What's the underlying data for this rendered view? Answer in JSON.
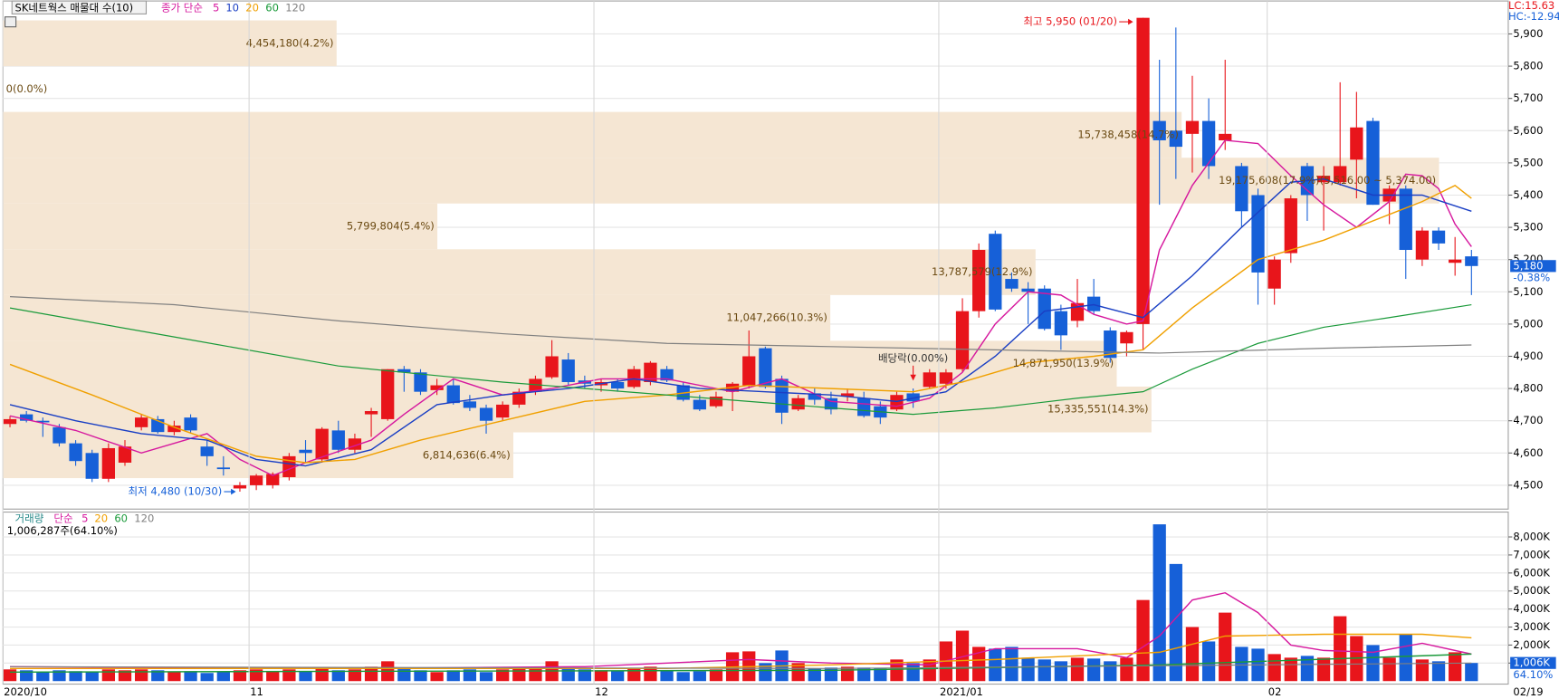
{
  "header": {
    "title": "SK네트웍스 매물대 수(10)",
    "lc": "LC:15.63",
    "hc": "HC:-12.94",
    "last_date": "02/19"
  },
  "chart_data": [
    {
      "type": "candlestick",
      "ma_title": "종가 단순",
      "categories": [
        "2020/10",
        null,
        null,
        null,
        null,
        null,
        null,
        null,
        null,
        null,
        null,
        null,
        null,
        null,
        null,
        "11",
        null,
        null,
        null,
        null,
        null,
        null,
        null,
        null,
        null,
        null,
        null,
        null,
        null,
        null,
        null,
        null,
        null,
        null,
        null,
        null,
        "12",
        null,
        null,
        null,
        null,
        null,
        null,
        null,
        null,
        null,
        null,
        null,
        null,
        null,
        null,
        null,
        null,
        null,
        null,
        null,
        null,
        "2021/01",
        null,
        null,
        null,
        null,
        null,
        null,
        null,
        null,
        null,
        null,
        null,
        null,
        null,
        null,
        null,
        null,
        null,
        null,
        null,
        "02",
        null,
        null,
        null,
        null,
        null,
        null,
        null,
        null,
        null,
        null,
        null,
        null
      ],
      "open": [
        4690,
        4720,
        4700,
        4680,
        4630,
        4600,
        4520,
        4570,
        4680,
        4705,
        4665,
        4710,
        4620,
        4555,
        4490,
        4500,
        4500,
        4525,
        4610,
        4580,
        4670,
        4610,
        4720,
        4705,
        4860,
        4850,
        4795,
        4810,
        4760,
        4740,
        4710,
        4750,
        4790,
        4835,
        4890,
        4825,
        4810,
        4820,
        4805,
        4820,
        4860,
        4810,
        4765,
        4745,
        4790,
        4810,
        4925,
        4830,
        4735,
        4785,
        4770,
        4775,
        4770,
        4745,
        4735,
        4785,
        4805,
        4815,
        4860,
        5040,
        5280,
        5140,
        5110,
        5110,
        5040,
        5010,
        5085,
        4980,
        4940,
        5000,
        5630,
        5600,
        5590,
        5630,
        5570,
        5490,
        5400,
        5110,
        5220,
        5490,
        5440,
        5440,
        5510,
        5630,
        5380,
        5420,
        5200,
        5290,
        5190,
        5210
      ],
      "high": [
        4715,
        4730,
        4710,
        4690,
        4640,
        4610,
        4630,
        4640,
        4720,
        4715,
        4700,
        4720,
        4640,
        4590,
        4510,
        4535,
        4540,
        4600,
        4640,
        4680,
        4700,
        4660,
        4740,
        4860,
        4870,
        4860,
        4830,
        4830,
        4780,
        4750,
        4760,
        4800,
        4840,
        4950,
        4910,
        4840,
        4830,
        4830,
        4870,
        4885,
        4870,
        4820,
        4780,
        4790,
        4820,
        4980,
        4930,
        4840,
        4780,
        4800,
        4790,
        4800,
        4790,
        4760,
        4790,
        4800,
        4860,
        4860,
        5080,
        5250,
        5290,
        5160,
        5130,
        5120,
        5060,
        5140,
        5140,
        4990,
        4980,
        5950,
        5820,
        5920,
        5770,
        5700,
        5820,
        5500,
        5420,
        5210,
        5400,
        5500,
        5490,
        5750,
        5720,
        5640,
        5430,
        5430,
        5300,
        5300,
        5270,
        5230
      ],
      "low": [
        4680,
        4695,
        4650,
        4620,
        4560,
        4510,
        4510,
        4560,
        4670,
        4660,
        4655,
        4660,
        4560,
        4530,
        4480,
        4485,
        4490,
        4515,
        4570,
        4570,
        4600,
        4600,
        4650,
        4700,
        4790,
        4780,
        4780,
        4750,
        4730,
        4660,
        4700,
        4740,
        4780,
        4830,
        4810,
        4800,
        4790,
        4790,
        4800,
        4810,
        4820,
        4760,
        4730,
        4740,
        4730,
        4800,
        4800,
        4690,
        4730,
        4750,
        4720,
        4760,
        4710,
        4690,
        4730,
        4740,
        4800,
        4800,
        4850,
        5020,
        5040,
        5100,
        5000,
        4980,
        4920,
        4990,
        5030,
        4880,
        4900,
        4920,
        5370,
        5450,
        5470,
        5450,
        5540,
        5300,
        5060,
        5060,
        5190,
        5320,
        5290,
        5430,
        5390,
        5370,
        5310,
        5140,
        5180,
        5230,
        5150,
        5090
      ],
      "close": [
        4705,
        4700,
        4695,
        4630,
        4575,
        4520,
        4615,
        4620,
        4710,
        4665,
        4685,
        4670,
        4590,
        4550,
        4500,
        4530,
        4535,
        4590,
        4600,
        4675,
        4610,
        4645,
        4730,
        4860,
        4850,
        4790,
        4810,
        4755,
        4740,
        4700,
        4750,
        4790,
        4830,
        4900,
        4820,
        4815,
        4820,
        4800,
        4860,
        4880,
        4825,
        4765,
        4735,
        4775,
        4815,
        4900,
        4805,
        4725,
        4770,
        4765,
        4735,
        4785,
        4715,
        4710,
        4780,
        4760,
        4850,
        4850,
        5040,
        5230,
        5045,
        5110,
        5100,
        4985,
        4965,
        5065,
        5040,
        4895,
        4975,
        5950,
        5570,
        5550,
        5630,
        5490,
        5590,
        5350,
        5160,
        5200,
        5390,
        5400,
        5460,
        5490,
        5610,
        5370,
        5420,
        5230,
        5290,
        5250,
        5200,
        5180
      ],
      "up_color": "#e8151b",
      "down_color": "#1660d8",
      "ylim": [
        4426,
        5959
      ],
      "yticks": [
        {
          "value": 4500,
          "label": "4,500"
        },
        {
          "value": 4600,
          "label": "4,600"
        },
        {
          "value": 4700,
          "label": "4,700"
        },
        {
          "value": 4800,
          "label": "4,800"
        },
        {
          "value": 4900,
          "label": "4,900"
        },
        {
          "value": 5000,
          "label": "5,000"
        },
        {
          "value": 5100,
          "label": "5,100"
        },
        {
          "value": 5200,
          "label": "5,200"
        },
        {
          "value": 5300,
          "label": "5,300"
        },
        {
          "value": 5400,
          "label": "5,400"
        },
        {
          "value": 5500,
          "label": "5,500"
        },
        {
          "value": 5600,
          "label": "5,600"
        },
        {
          "value": 5700,
          "label": "5,700"
        },
        {
          "value": 5800,
          "label": "5,800"
        },
        {
          "value": 5900,
          "label": "5,900"
        }
      ],
      "grid": true,
      "ma_lines": [
        {
          "name": "5",
          "color": "#d6189e",
          "x": [
            0,
            4,
            8,
            12,
            14,
            16,
            18,
            22,
            24,
            27,
            30,
            33,
            36,
            40,
            44,
            47,
            50,
            54,
            56,
            58,
            60,
            62,
            64,
            66,
            68,
            69,
            70,
            72,
            74,
            76,
            78,
            80,
            82,
            84,
            85,
            86,
            87,
            88,
            89
          ],
          "values": [
            4715,
            4670,
            4600,
            4660,
            4580,
            4530,
            4570,
            4640,
            4720,
            4830,
            4780,
            4800,
            4830,
            4830,
            4790,
            4830,
            4760,
            4745,
            4770,
            4850,
            5000,
            5100,
            5090,
            5030,
            5000,
            5010,
            5230,
            5430,
            5570,
            5560,
            5460,
            5370,
            5300,
            5380,
            5465,
            5460,
            5420,
            5310,
            5240
          ]
        },
        {
          "name": "10",
          "color": "#1a3fc4",
          "x": [
            0,
            4,
            8,
            12,
            15,
            18,
            22,
            26,
            30,
            34,
            38,
            42,
            46,
            50,
            54,
            57,
            60,
            63,
            66,
            69,
            72,
            75,
            78,
            80,
            83,
            86,
            89
          ],
          "values": [
            4750,
            4700,
            4660,
            4640,
            4580,
            4560,
            4610,
            4750,
            4780,
            4800,
            4830,
            4800,
            4790,
            4780,
            4760,
            4790,
            4900,
            5040,
            5060,
            5020,
            5150,
            5300,
            5440,
            5450,
            5400,
            5400,
            5350
          ]
        },
        {
          "name": "20",
          "color": "#f0a000",
          "x": [
            0,
            5,
            10,
            15,
            18,
            21,
            25,
            30,
            35,
            40,
            45,
            50,
            55,
            58,
            62,
            66,
            69,
            72,
            76,
            80,
            84,
            86,
            88,
            89
          ],
          "values": [
            4875,
            4780,
            4680,
            4590,
            4570,
            4580,
            4640,
            4700,
            4760,
            4780,
            4810,
            4800,
            4790,
            4820,
            4880,
            4900,
            4920,
            5050,
            5200,
            5260,
            5340,
            5380,
            5430,
            5390
          ]
        },
        {
          "name": "60",
          "color": "#1a9a3a",
          "x": [
            0,
            10,
            20,
            30,
            40,
            50,
            55,
            60,
            65,
            69,
            72,
            76,
            80,
            84,
            89
          ],
          "values": [
            5050,
            4960,
            4870,
            4820,
            4780,
            4740,
            4720,
            4740,
            4770,
            4790,
            4860,
            4940,
            4990,
            5020,
            5060
          ]
        },
        {
          "name": "120",
          "color": "#808080",
          "x": [
            0,
            10,
            20,
            30,
            40,
            50,
            60,
            70,
            80,
            89
          ],
          "values": [
            5085,
            5060,
            5010,
            4970,
            4940,
            4930,
            4920,
            4910,
            4925,
            4935
          ]
        }
      ],
      "volume_profile": {
        "color": "#f5e6d3",
        "bins": [
          4522,
          4664,
          4806,
          4948,
          5090,
          5232,
          5374,
          5516,
          5658,
          5800,
          5942
        ],
        "values": [
          6814636,
          15335551,
          14871950,
          11047266,
          13787579,
          5799804,
          19175608,
          15738458,
          0,
          4454180
        ],
        "value_labels": [
          "6,814,636(6.4%)",
          "15,335,551(14.3%)",
          "14,871,950(13.9%)",
          "11,047,266(10.3%)",
          "13,787,579(12.9%)",
          "5,799,804(5.4%)",
          "19,175,608(17.9%)(5,516.00 ~ 5,374.00)",
          "15,738,458(14.7%)",
          "0(0.0%)",
          "4,454,180(4.2%)"
        ],
        "xlim": [
          0,
          20100000
        ]
      },
      "high_label": "최고 5,950 (01/20)",
      "low_label": "최저 4,480 (10/30)",
      "ex_dividend_label": "배당락(0.00%)",
      "last_value_label": "5,180",
      "change_label": "-0.38%"
    },
    {
      "type": "volume",
      "title": "거래량",
      "ma_title": "단순",
      "value_label": "1,006,287주(64.10%)",
      "values": [
        650,
        600,
        500,
        600,
        550,
        500,
        650,
        600,
        650,
        600,
        500,
        550,
        450,
        500,
        600,
        650,
        550,
        650,
        550,
        700,
        600,
        650,
        800,
        1100,
        700,
        600,
        500,
        600,
        650,
        500,
        650,
        700,
        750,
        1100,
        700,
        650,
        600,
        550,
        700,
        800,
        600,
        500,
        550,
        650,
        1600,
        1650,
        1000,
        1700,
        1000,
        700,
        750,
        800,
        750,
        700,
        1200,
        1000,
        1200,
        2200,
        2800,
        1900,
        1800,
        1900,
        1300,
        1200,
        1100,
        1300,
        1250,
        1100,
        1300,
        4500,
        8700,
        6500,
        3000,
        2200,
        3800,
        1900,
        1800,
        1500,
        1300,
        1400,
        1300,
        3600,
        2500,
        2000,
        1300,
        2600,
        1200,
        1100,
        1600,
        1006.287
      ],
      "ylim": [
        0,
        9270
      ],
      "yticks": [
        {
          "value": 1000,
          "label": "1,000K"
        },
        {
          "value": 2000,
          "label": "2,000K"
        },
        {
          "value": 3000,
          "label": "3,000K"
        },
        {
          "value": 4000,
          "label": "4,000K"
        },
        {
          "value": 5000,
          "label": "5,000K"
        },
        {
          "value": 6000,
          "label": "6,000K"
        },
        {
          "value": 7000,
          "label": "7,000K"
        },
        {
          "value": 8000,
          "label": "8,000K"
        }
      ],
      "ma_lines": [
        {
          "name": "5",
          "color": "#d6189e",
          "x": [
            0,
            20,
            35,
            45,
            50,
            56,
            60,
            65,
            68,
            70,
            72,
            74,
            76,
            78,
            80,
            83,
            86,
            89
          ],
          "values": [
            800,
            700,
            800,
            1200,
            1000,
            900,
            1800,
            1800,
            1300,
            2500,
            4500,
            4900,
            3800,
            2000,
            1700,
            1600,
            2100,
            1500
          ]
        },
        {
          "name": "20",
          "color": "#f0a000",
          "x": [
            0,
            40,
            50,
            60,
            70,
            74,
            80,
            86,
            89
          ],
          "values": [
            700,
            700,
            900,
            1200,
            1600,
            2500,
            2600,
            2600,
            2400
          ]
        },
        {
          "name": "60",
          "color": "#1a9a3a",
          "x": [
            0,
            50,
            70,
            89
          ],
          "values": [
            500,
            600,
            900,
            1500
          ]
        },
        {
          "name": "120",
          "color": "#808080",
          "x": [
            0,
            50,
            89
          ],
          "values": [
            800,
            700,
            1000
          ]
        }
      ],
      "last_value_label": "1,006K",
      "pct_label": "64.10%"
    }
  ]
}
